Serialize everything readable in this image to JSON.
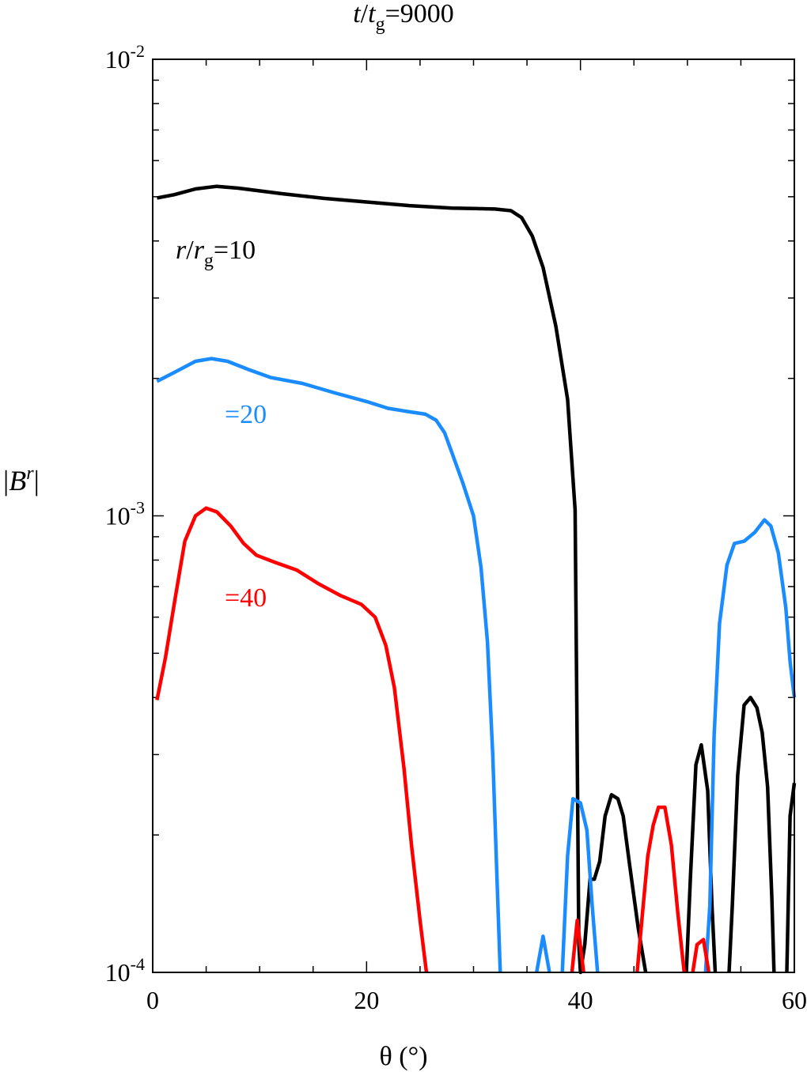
{
  "title": {
    "t": "t",
    "slash": "/",
    "tsym": "t",
    "tsub": "g",
    "value": "=9000"
  },
  "axes": {
    "xlabel": "θ (°)",
    "ylabel_B": "B",
    "ylabel_r": "r"
  },
  "annotations": {
    "r10": {
      "r": "r",
      "slash": "/",
      "rsym": "r",
      "rsub": "g",
      "value": "=10"
    },
    "r20": "=20",
    "r40": "=40"
  },
  "chart_data": {
    "type": "line",
    "title": "t/tg=9000",
    "xlabel": "θ (°)",
    "ylabel": "|B^r|",
    "xlim": [
      0,
      60
    ],
    "ylim": [
      0.0001,
      0.01
    ],
    "yscale": "log",
    "x_ticks": [
      "0",
      "20",
      "40",
      "60"
    ],
    "y_ticks": [
      {
        "base": "10",
        "exp": "-4",
        "value": 0.0001
      },
      {
        "base": "10",
        "exp": "-3",
        "value": 0.001
      },
      {
        "base": "10",
        "exp": "-2",
        "value": 0.01
      }
    ],
    "colors": {
      "r10": "#000000",
      "r20": "#1a8cff",
      "r40": "#ff0000"
    },
    "series": [
      {
        "label": "r/rg=10",
        "color": "#000000",
        "points": [
          [
            0.4,
            0.00497
          ],
          [
            2,
            0.00505
          ],
          [
            4,
            0.0052
          ],
          [
            6,
            0.00527
          ],
          [
            8,
            0.00522
          ],
          [
            12,
            0.00508
          ],
          [
            16,
            0.00496
          ],
          [
            20,
            0.00487
          ],
          [
            24,
            0.00478
          ],
          [
            28,
            0.00472
          ],
          [
            30,
            0.00471
          ],
          [
            32,
            0.0047
          ],
          [
            33.5,
            0.00466
          ],
          [
            34.5,
            0.0045
          ],
          [
            35.5,
            0.0041
          ],
          [
            36.5,
            0.0035
          ],
          [
            37.7,
            0.0026
          ],
          [
            38.8,
            0.0018
          ],
          [
            39.5,
            0.00103
          ],
          [
            39.7,
            0.0003
          ],
          [
            39.85,
            0.000115
          ],
          [
            40,
            0.0001
          ],
          [
            40.4,
            0.000115
          ],
          [
            40.9,
            0.00016
          ],
          [
            41.3,
            0.00016
          ],
          [
            41.8,
            0.000175
          ],
          [
            42.3,
            0.00022
          ],
          [
            42.9,
            0.000245
          ],
          [
            43.5,
            0.00024
          ],
          [
            44,
            0.00022
          ],
          [
            44.6,
            0.000172
          ],
          [
            45.4,
            0.000125
          ],
          [
            46.1,
            0.0001
          ],
          null,
          [
            49.9,
            0.0001
          ],
          [
            50.3,
            0.000165
          ],
          [
            50.8,
            0.000285
          ],
          [
            51.3,
            0.000315
          ],
          [
            51.9,
            0.00025
          ],
          [
            52.3,
            0.00014
          ],
          [
            52.6,
            0.0001
          ],
          null,
          [
            53.9,
            0.0001
          ],
          [
            54.2,
            0.00014
          ],
          [
            54.7,
            0.00027
          ],
          [
            55.3,
            0.000385
          ],
          [
            55.9,
            0.0004
          ],
          [
            56.5,
            0.00038
          ],
          [
            57,
            0.000335
          ],
          [
            57.5,
            0.000255
          ],
          [
            57.9,
            0.000145
          ],
          [
            58.1,
            0.0001
          ],
          null,
          [
            59.3,
            0.0001
          ],
          [
            59.6,
            0.00022
          ],
          [
            60,
            0.00026
          ]
        ]
      },
      {
        "label": "=20",
        "color": "#1a8cff",
        "points": [
          [
            0.4,
            0.00197
          ],
          [
            2,
            0.00206
          ],
          [
            4,
            0.00218
          ],
          [
            5.5,
            0.00221
          ],
          [
            7,
            0.00218
          ],
          [
            9,
            0.00209
          ],
          [
            11,
            0.00201
          ],
          [
            14,
            0.00195
          ],
          [
            17,
            0.00186
          ],
          [
            20,
            0.00178
          ],
          [
            22,
            0.00172
          ],
          [
            24,
            0.00169
          ],
          [
            25.5,
            0.00167
          ],
          [
            26.5,
            0.00162
          ],
          [
            27.3,
            0.00152
          ],
          [
            28,
            0.00137
          ],
          [
            29,
            0.00118
          ],
          [
            30,
            0.001
          ],
          [
            30.7,
            0.00077
          ],
          [
            31.3,
            0.00053
          ],
          [
            31.8,
            0.0003
          ],
          [
            32.2,
            0.00016
          ],
          [
            32.5,
            0.0001
          ],
          null,
          [
            35.9,
            0.0001
          ],
          [
            36.5,
            0.00012
          ],
          [
            37.1,
            0.0001
          ],
          null,
          [
            38.3,
            0.0001
          ],
          [
            38.8,
            0.00018
          ],
          [
            39.3,
            0.00024
          ],
          [
            40,
            0.000235
          ],
          [
            40.6,
            0.000205
          ],
          [
            41.1,
            0.00014
          ],
          [
            41.6,
            0.0001
          ],
          null,
          [
            51.7,
            0.0001
          ],
          [
            52.1,
            0.00014
          ],
          [
            52.5,
            0.00033
          ],
          [
            53,
            0.00058
          ],
          [
            53.7,
            0.00078
          ],
          [
            54.4,
            0.00087
          ],
          [
            55.3,
            0.00088
          ],
          [
            56.3,
            0.00092
          ],
          [
            57.2,
            0.00098
          ],
          [
            57.8,
            0.00095
          ],
          [
            58.5,
            0.00083
          ],
          [
            59.2,
            0.00063
          ],
          [
            59.6,
            0.00048
          ],
          [
            60,
            0.0004
          ]
        ]
      },
      {
        "label": "=40",
        "color": "#ff0000",
        "points": [
          [
            0.4,
            0.000395
          ],
          [
            1.2,
            0.00049
          ],
          [
            2.1,
            0.00066
          ],
          [
            3,
            0.00088
          ],
          [
            4,
            0.001
          ],
          [
            5,
            0.00104
          ],
          [
            6,
            0.00102
          ],
          [
            7.3,
            0.00095
          ],
          [
            8.5,
            0.00087
          ],
          [
            9.7,
            0.00082
          ],
          [
            11.5,
            0.00079
          ],
          [
            13.5,
            0.00076
          ],
          [
            15.5,
            0.00071
          ],
          [
            17.5,
            0.00067
          ],
          [
            19.5,
            0.00064
          ],
          [
            20.8,
            0.0006
          ],
          [
            21.8,
            0.00052
          ],
          [
            22.6,
            0.00042
          ],
          [
            23.5,
            0.00028
          ],
          [
            24.2,
            0.00019
          ],
          [
            25,
            0.00013
          ],
          [
            25.6,
            0.0001
          ],
          null,
          [
            39.2,
            0.0001
          ],
          [
            39.7,
            0.00013
          ],
          [
            40.3,
            0.0001
          ],
          null,
          [
            45.3,
            0.0001
          ],
          [
            45.8,
            0.000135
          ],
          [
            46.3,
            0.00018
          ],
          [
            46.8,
            0.00021
          ],
          [
            47.3,
            0.00023
          ],
          [
            47.9,
            0.00023
          ],
          [
            48.5,
            0.00019
          ],
          [
            49.1,
            0.000135
          ],
          [
            49.7,
            0.0001
          ],
          null,
          [
            50.5,
            0.0001
          ],
          [
            50.9,
            0.000115
          ],
          [
            51.5,
            0.000118
          ],
          [
            52,
            0.0001
          ]
        ]
      }
    ]
  }
}
